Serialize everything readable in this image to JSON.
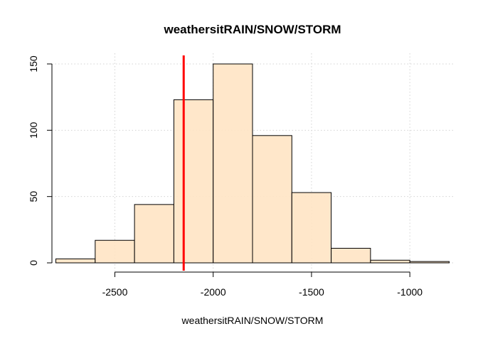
{
  "chart_data": {
    "type": "bar",
    "subtype": "histogram",
    "title": "weathersitRAIN/SNOW/STORM",
    "xlabel": "weathersitRAIN/SNOW/STORM",
    "ylabel": "",
    "bins": [
      {
        "start": -2800,
        "end": -2600,
        "count": 3
      },
      {
        "start": -2600,
        "end": -2400,
        "count": 17
      },
      {
        "start": -2400,
        "end": -2200,
        "count": 44
      },
      {
        "start": -2200,
        "end": -2000,
        "count": 123
      },
      {
        "start": -2000,
        "end": -1800,
        "count": 150
      },
      {
        "start": -1800,
        "end": -1600,
        "count": 96
      },
      {
        "start": -1600,
        "end": -1400,
        "count": 53
      },
      {
        "start": -1400,
        "end": -1200,
        "count": 11
      },
      {
        "start": -1200,
        "end": -1000,
        "count": 2
      },
      {
        "start": -1000,
        "end": -800,
        "count": 1
      }
    ],
    "xticks": [
      -2500,
      -2000,
      -1500,
      -1000
    ],
    "yticks": [
      0,
      50,
      100,
      150
    ],
    "xlim": [
      -2820,
      -780
    ],
    "ylim": [
      0,
      150
    ],
    "reference_line": {
      "x": -2150,
      "color": "#ff0000"
    },
    "bar_fill": "#ffe4c4",
    "bar_stroke": "#000000",
    "grid": true,
    "grid_color": "#d3d3d3"
  }
}
